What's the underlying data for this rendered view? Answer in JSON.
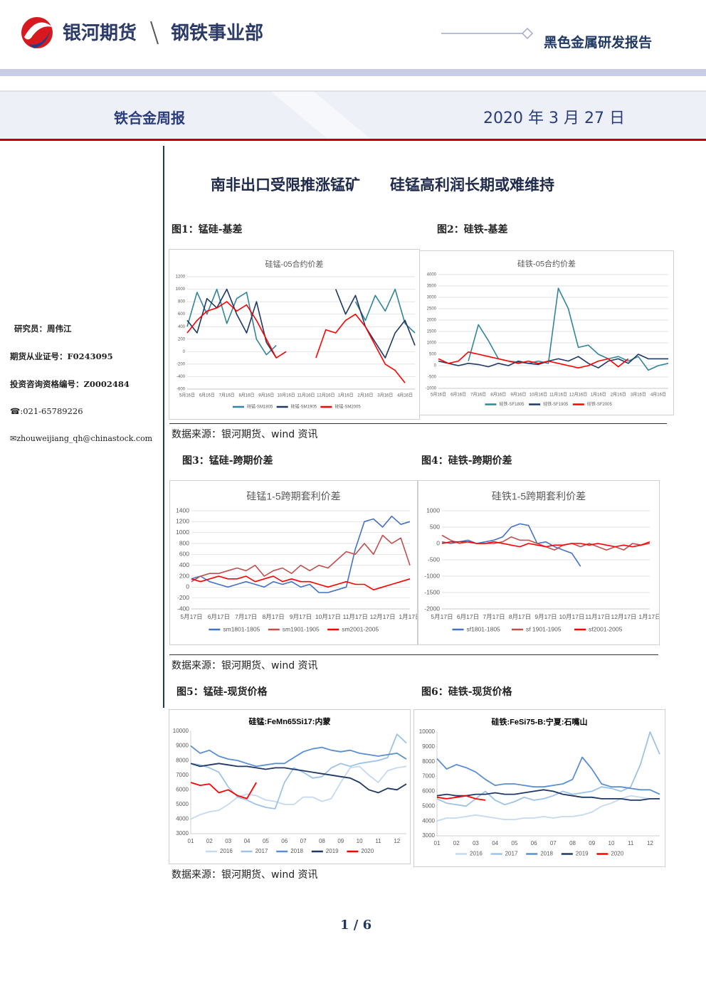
{
  "header": {
    "company": "银河期货",
    "division": "钢铁事业部",
    "report_type": "黑色金属研发报告",
    "report_name": "铁合金周报",
    "date": "2020 年 3 月 27 日"
  },
  "sidebar": {
    "analyst": "研究员：周伟江",
    "license": "期货从业证号：F0243095",
    "consult": "投资咨询资格编号：Z0002484",
    "phone": "☎:021-65789226",
    "email": "✉zhouweijiang_qh@chinastock.com"
  },
  "headline": "南非出口受限推涨锰矿　　硅锰高利润长期或难维持",
  "sources": [
    "数据来源：银河期货、wind 资讯",
    "数据来源：银河期货、wind 资讯",
    "数据来源：银河期货、wind 资讯"
  ],
  "page": "1 / 6",
  "figures": [
    {
      "label": "图1：锰硅-基差",
      "chart_data": {
        "type": "line",
        "title": "硅锰-05合约价差",
        "grid": true,
        "categories": [
          "5月16日",
          null,
          "6月16日",
          null,
          "7月16日",
          null,
          "8月16日",
          null,
          "9月16日",
          null,
          "10月16日",
          null,
          "11月16日",
          null,
          "12月16日",
          null,
          "1月16日",
          null,
          "2月16日",
          null,
          "3月16日",
          null,
          "4月16日",
          null
        ],
        "ylim": [
          -600,
          1200
        ],
        "yticks": [
          -600,
          -400,
          -200,
          0,
          200,
          400,
          600,
          800,
          1000,
          1200
        ],
        "series": [
          {
            "name": "硅锰-SM1805",
            "color": "#31859c",
            "values": [
              400,
              950,
              600,
              1000,
              450,
              850,
              950,
              200,
              -50,
              100,
              null,
              null,
              null,
              null,
              null,
              null,
              null,
              800,
              500,
              900,
              650,
              1000,
              450,
              300
            ]
          },
          {
            "name": "硅锰-SM1905",
            "color": "#1f3864",
            "values": [
              500,
              300,
              850,
              700,
              1000,
              600,
              300,
              800,
              150,
              -100,
              null,
              null,
              null,
              null,
              null,
              1000,
              600,
              900,
              400,
              150,
              -100,
              300,
              500,
              100
            ]
          },
          {
            "name": "硅锰-SM2005",
            "color": "#ff0000",
            "values": [
              300,
              500,
              650,
              700,
              800,
              650,
              750,
              500,
              200,
              -100,
              0,
              null,
              null,
              -100,
              350,
              300,
              500,
              600,
              400,
              100,
              -200,
              -300,
              -500,
              null
            ]
          }
        ]
      }
    },
    {
      "label": "图2：硅铁-基差",
      "chart_data": {
        "type": "line",
        "title": "硅铁-05合约价差",
        "grid": true,
        "categories": [
          "5月16日",
          null,
          "6月16日",
          null,
          "7月16日",
          null,
          "8月16日",
          null,
          "9月16日",
          null,
          "10月16日",
          null,
          "11月16日",
          null,
          "12月16日",
          null,
          "1月16日",
          null,
          "2月16日",
          null,
          "3月16日",
          null,
          "4月16日",
          null
        ],
        "ylim": [
          -1000,
          4000
        ],
        "yticks": [
          -1000,
          -500,
          0,
          500,
          1000,
          1500,
          2000,
          2500,
          3000,
          3500,
          4000
        ],
        "series": [
          {
            "name": "硅铁-SF1805",
            "color": "#31859c",
            "values": [
              null,
              null,
              null,
              200,
              1800,
              1100,
              300,
              200,
              150,
              100,
              200,
              100,
              3400,
              2500,
              800,
              900,
              500,
              300,
              400,
              200,
              400,
              -200,
              0,
              100
            ]
          },
          {
            "name": "硅铁-SF1905",
            "color": "#1f3864",
            "values": [
              200,
              100,
              0,
              100,
              50,
              -50,
              100,
              0,
              200,
              100,
              50,
              200,
              300,
              200,
              400,
              100,
              -100,
              200,
              300,
              100,
              500,
              300,
              300,
              300
            ]
          },
          {
            "name": "硅铁-SF2005",
            "color": "#ff0000",
            "values": [
              300,
              100,
              200,
              600,
              500,
              400,
              300,
              200,
              100,
              200,
              100,
              200,
              100,
              0,
              -100,
              0,
              200,
              300,
              -50,
              300,
              null,
              null,
              null,
              null
            ]
          }
        ]
      }
    },
    {
      "label": "图3：锰硅-跨期价差",
      "chart_data": {
        "type": "line",
        "title": "硅锰1-5跨期套利价差",
        "grid": true,
        "categories": [
          "5月17日",
          null,
          null,
          "6月17日",
          null,
          null,
          "7月17日",
          null,
          null,
          "8月17日",
          null,
          null,
          "9月17日",
          null,
          null,
          "10月17日",
          null,
          null,
          "11月17日",
          null,
          null,
          "12月17日",
          null,
          null,
          "1月17日"
        ],
        "ylim": [
          -400,
          1400
        ],
        "yticks": [
          -400,
          -200,
          0,
          200,
          400,
          600,
          800,
          1000,
          1200,
          1400
        ],
        "series": [
          {
            "name": "sm1801-1805",
            "color": "#4472c4",
            "values": [
              150,
              200,
              100,
              50,
              0,
              50,
              100,
              50,
              0,
              100,
              50,
              100,
              0,
              50,
              -100,
              -100,
              -50,
              0,
              700,
              1200,
              1250,
              1100,
              1300,
              1150,
              1200
            ]
          },
          {
            "name": "sm1901-1905",
            "color": "#c0504d",
            "values": [
              100,
              200,
              250,
              250,
              300,
              350,
              300,
              400,
              200,
              300,
              350,
              250,
              400,
              300,
              400,
              350,
              500,
              650,
              600,
              800,
              600,
              950,
              800,
              900,
              400
            ]
          },
          {
            "name": "sm2001-2005",
            "color": "#ff0000",
            "values": [
              150,
              100,
              150,
              200,
              150,
              150,
              200,
              100,
              150,
              200,
              100,
              150,
              100,
              100,
              50,
              0,
              50,
              100,
              50,
              50,
              -50,
              0,
              50,
              100,
              150
            ]
          }
        ]
      }
    },
    {
      "label": "图4：硅铁-跨期价差",
      "chart_data": {
        "type": "line",
        "title": "硅铁1-5跨期套利价差",
        "grid": true,
        "categories": [
          "5月17日",
          null,
          null,
          "6月17日",
          null,
          null,
          "7月17日",
          null,
          null,
          "8月17日",
          null,
          null,
          "9月17日",
          null,
          null,
          "10月17日",
          null,
          null,
          "11月17日",
          null,
          null,
          "12月17日",
          null,
          null,
          "1月17日"
        ],
        "ylim": [
          -2000,
          1000
        ],
        "yticks": [
          -2000,
          -1500,
          -1000,
          -500,
          0,
          500,
          1000
        ],
        "series": [
          {
            "name": "sf1801-1805",
            "color": "#4472c4",
            "values": [
              50,
              0,
              50,
              100,
              0,
              50,
              100,
              200,
              500,
              600,
              550,
              0,
              50,
              -100,
              -200,
              -300,
              -700,
              null,
              null,
              null,
              null,
              null,
              null,
              null,
              null
            ]
          },
          {
            "name": "sf 1901-1905",
            "color": "#c0504d",
            "values": [
              250,
              100,
              0,
              50,
              0,
              0,
              0,
              50,
              200,
              100,
              100,
              0,
              -100,
              -200,
              -50,
              0,
              -100,
              0,
              -100,
              -200,
              -100,
              -200,
              0,
              -50,
              0
            ]
          },
          {
            "name": "sf2001-2005",
            "color": "#ff0000",
            "values": [
              0,
              50,
              50,
              50,
              0,
              0,
              50,
              0,
              -50,
              -100,
              0,
              -50,
              -100,
              -50,
              -50,
              0,
              0,
              -50,
              0,
              -50,
              -100,
              -50,
              -100,
              -50,
              50
            ]
          }
        ]
      }
    },
    {
      "label": "图5：锰硅-现货价格",
      "chart_data": {
        "type": "line",
        "title": "硅锰:FeMn65Si17:内蒙",
        "grid": false,
        "categories": [
          "01",
          null,
          "02",
          null,
          "03",
          null,
          "04",
          null,
          "05",
          null,
          "06",
          null,
          "07",
          null,
          "08",
          null,
          "09",
          null,
          "10",
          null,
          "11",
          null,
          "12",
          null
        ],
        "ylim": [
          3000,
          10000
        ],
        "yticks": [
          3000,
          4000,
          5000,
          6000,
          7000,
          8000,
          9000,
          10000
        ],
        "series": [
          {
            "name": "2016",
            "color": "#c5d9f1",
            "values": [
              4000,
              4300,
              4500,
              4600,
              5000,
              5500,
              5700,
              5600,
              5300,
              5200,
              5000,
              5000,
              5500,
              5500,
              5200,
              5400,
              6500,
              7500,
              7600,
              7000,
              6500,
              7300,
              7500,
              7600
            ]
          },
          {
            "name": "2017",
            "color": "#9dc3e6",
            "values": [
              7800,
              7700,
              7500,
              7200,
              6200,
              5500,
              5300,
              5000,
              4800,
              4700,
              6500,
              7500,
              7200,
              6800,
              6900,
              7500,
              7800,
              7600,
              7800,
              7900,
              8000,
              8200,
              9800,
              9200
            ]
          },
          {
            "name": "2018",
            "color": "#5b8fd1",
            "values": [
              9000,
              8500,
              8700,
              8300,
              8100,
              8000,
              7800,
              7600,
              7700,
              7800,
              7800,
              8200,
              8600,
              8800,
              8900,
              8700,
              8600,
              8700,
              8500,
              8400,
              8300,
              8400,
              8500,
              8100
            ]
          },
          {
            "name": "2019",
            "color": "#1f3864",
            "values": [
              7800,
              7600,
              7700,
              7800,
              7700,
              7600,
              7600,
              7500,
              7400,
              7500,
              7500,
              7400,
              7300,
              7200,
              7100,
              7000,
              6900,
              6800,
              6500,
              6000,
              5800,
              6100,
              6000,
              6400
            ]
          },
          {
            "name": "2020",
            "color": "#ff0000",
            "values": [
              6500,
              6300,
              6400,
              5800,
              6000,
              5600,
              5400,
              6500,
              null,
              null,
              null,
              null,
              null,
              null,
              null,
              null,
              null,
              null,
              null,
              null,
              null,
              null,
              null,
              null
            ]
          }
        ]
      }
    },
    {
      "label": "图6：硅铁-现货价格",
      "chart_data": {
        "type": "line",
        "title": "硅铁:FeSi75-B:宁夏:石嘴山",
        "grid": false,
        "categories": [
          "01",
          null,
          "02",
          null,
          "03",
          null,
          "04",
          null,
          "05",
          null,
          "06",
          null,
          "07",
          null,
          "08",
          null,
          "09",
          null,
          "10",
          null,
          "11",
          null,
          "12",
          null
        ],
        "ylim": [
          3000,
          10000
        ],
        "yticks": [
          3000,
          4000,
          5000,
          6000,
          7000,
          8000,
          9000,
          10000
        ],
        "series": [
          {
            "name": "2016",
            "color": "#c5d9f1",
            "values": [
              4000,
              4200,
              4200,
              4300,
              4400,
              4300,
              4200,
              4100,
              4100,
              4200,
              4200,
              4300,
              4200,
              4300,
              4300,
              4400,
              4600,
              5000,
              5200,
              5500,
              5700,
              5600,
              5500,
              5500
            ]
          },
          {
            "name": "2017",
            "color": "#9dc3e6",
            "values": [
              5500,
              5200,
              5100,
              5000,
              5500,
              6000,
              5400,
              5100,
              5300,
              5600,
              5400,
              5500,
              5700,
              6000,
              5800,
              5900,
              6000,
              6300,
              6200,
              6000,
              6300,
              7800,
              10000,
              8500
            ]
          },
          {
            "name": "2018",
            "color": "#5b8fd1",
            "values": [
              8200,
              7500,
              7800,
              7600,
              7300,
              6800,
              6400,
              6500,
              6500,
              6400,
              6300,
              6300,
              6400,
              6500,
              6800,
              8300,
              7500,
              6500,
              6300,
              6300,
              6200,
              6100,
              6100,
              5800
            ]
          },
          {
            "name": "2019",
            "color": "#1f3864",
            "values": [
              5700,
              5800,
              5700,
              5700,
              5800,
              5800,
              5900,
              5800,
              5800,
              5900,
              6000,
              6100,
              6000,
              5800,
              5700,
              5600,
              5600,
              5500,
              5500,
              5500,
              5400,
              5400,
              5500,
              5500
            ]
          },
          {
            "name": "2020",
            "color": "#ff0000",
            "values": [
              5600,
              5500,
              5600,
              5700,
              5500,
              5400,
              null,
              null,
              null,
              null,
              null,
              null,
              null,
              null,
              null,
              null,
              null,
              null,
              null,
              null,
              null,
              null,
              null,
              null
            ]
          }
        ]
      }
    }
  ]
}
